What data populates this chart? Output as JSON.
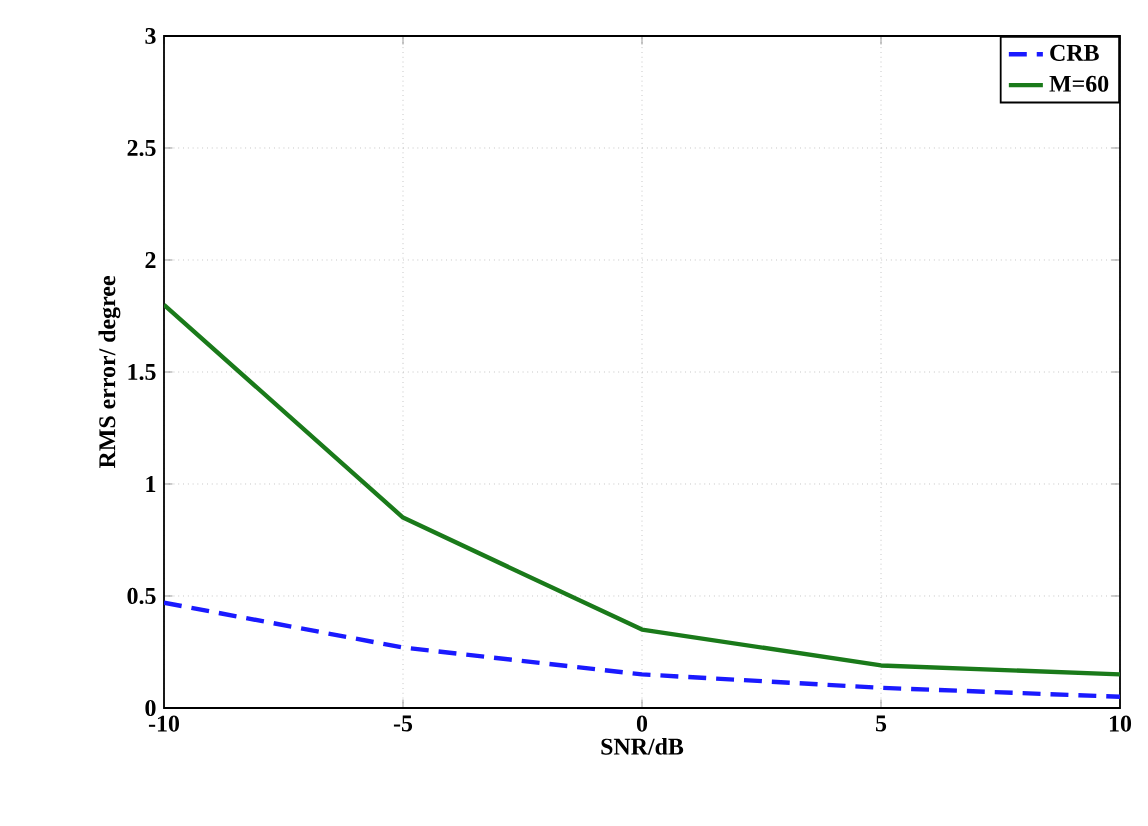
{
  "chart_data": {
    "type": "line",
    "xlabel": "SNR/dB",
    "ylabel": "RMS error/ degree",
    "x": [
      -10,
      -5,
      0,
      5,
      10
    ],
    "xlim": [
      -10,
      10
    ],
    "ylim": [
      0,
      3
    ],
    "xticks": [
      -10,
      -5,
      0,
      5,
      10
    ],
    "yticks": [
      0,
      0.5,
      1,
      1.5,
      2,
      2.5,
      3
    ],
    "grid": true,
    "legend": "top right",
    "marker": "none",
    "series": [
      {
        "name": "CRB",
        "color": "#1a1aff",
        "line_style": "dashed",
        "values": [
          0.47,
          0.27,
          0.15,
          0.09,
          0.05
        ]
      },
      {
        "name": "M=60",
        "color": "#1a7a1a",
        "line_style": "solid",
        "values": [
          1.8,
          0.85,
          0.35,
          0.19,
          0.15
        ]
      }
    ]
  }
}
